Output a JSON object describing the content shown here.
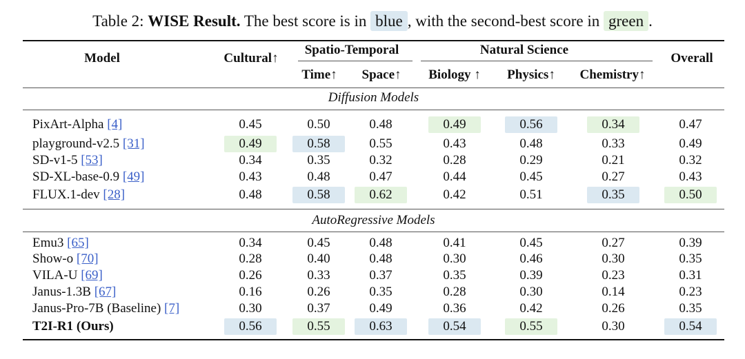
{
  "caption": {
    "prefix": "Table 2: ",
    "title": "WISE Result.",
    "text1": " The best score is in ",
    "blue_word": "blue",
    "text2": ", with the second-best score in ",
    "green_word": "green",
    "text3": "."
  },
  "header": {
    "model": "Model",
    "cultural": "Cultural↑",
    "spatio_temporal": "Spatio-Temporal",
    "time": "Time↑",
    "space": "Space↑",
    "natural_science": "Natural Science",
    "biology": "Biology ↑",
    "physics": "Physics↑",
    "chemistry": "Chemistry↑",
    "overall": "Overall"
  },
  "sections": {
    "diffusion": "Diffusion Models",
    "autoregressive": "AutoRegressive Models"
  },
  "rows": [
    {
      "name": "PixArt-Alpha ",
      "ref": "[4]",
      "v": [
        "0.45",
        "0.50",
        "0.48",
        "0.49",
        "0.56",
        "0.34",
        "0.47"
      ],
      "hl": [
        "",
        "",
        "",
        "second",
        "best",
        "second",
        ""
      ]
    },
    {
      "name": "playground-v2.5 ",
      "ref": "[31]",
      "v": [
        "0.49",
        "0.58",
        "0.55",
        "0.43",
        "0.48",
        "0.33",
        "0.49"
      ],
      "hl": [
        "second",
        "best",
        "",
        "",
        "",
        "",
        ""
      ]
    },
    {
      "name": "SD-v1-5 ",
      "ref": "[53]",
      "v": [
        "0.34",
        "0.35",
        "0.32",
        "0.28",
        "0.29",
        "0.21",
        "0.32"
      ],
      "hl": [
        "",
        "",
        "",
        "",
        "",
        "",
        ""
      ]
    },
    {
      "name": "SD-XL-base-0.9 ",
      "ref": "[49]",
      "v": [
        "0.43",
        "0.48",
        "0.47",
        "0.44",
        "0.45",
        "0.27",
        "0.43"
      ],
      "hl": [
        "",
        "",
        "",
        "",
        "",
        "",
        ""
      ]
    },
    {
      "name": "FLUX.1-dev ",
      "ref": "[28]",
      "v": [
        "0.48",
        "0.58",
        "0.62",
        "0.42",
        "0.51",
        "0.35",
        "0.50"
      ],
      "hl": [
        "",
        "best",
        "second",
        "",
        "",
        "best",
        "second"
      ]
    },
    {
      "name": "Emu3 ",
      "ref": "[65]",
      "v": [
        "0.34",
        "0.45",
        "0.48",
        "0.41",
        "0.45",
        "0.27",
        "0.39"
      ],
      "hl": [
        "",
        "",
        "",
        "",
        "",
        "",
        ""
      ]
    },
    {
      "name": "Show-o ",
      "ref": "[70]",
      "v": [
        "0.28",
        "0.40",
        "0.48",
        "0.30",
        "0.46",
        "0.30",
        "0.35"
      ],
      "hl": [
        "",
        "",
        "",
        "",
        "",
        "",
        ""
      ]
    },
    {
      "name": "VILA-U ",
      "ref": "[69]",
      "v": [
        "0.26",
        "0.33",
        "0.37",
        "0.35",
        "0.39",
        "0.23",
        "0.31"
      ],
      "hl": [
        "",
        "",
        "",
        "",
        "",
        "",
        ""
      ]
    },
    {
      "name": "Janus-1.3B ",
      "ref": "[67]",
      "v": [
        "0.16",
        "0.26",
        "0.35",
        "0.28",
        "0.30",
        "0.14",
        "0.23"
      ],
      "hl": [
        "",
        "",
        "",
        "",
        "",
        "",
        ""
      ]
    },
    {
      "name": "Janus-Pro-7B (Baseline) ",
      "ref": "[7]",
      "v": [
        "0.30",
        "0.37",
        "0.49",
        "0.36",
        "0.42",
        "0.26",
        "0.35"
      ],
      "hl": [
        "",
        "",
        "",
        "",
        "",
        "",
        ""
      ]
    },
    {
      "name": "T2I-R1 (Ours)",
      "ref": "",
      "bold": true,
      "v": [
        "0.56",
        "0.55",
        "0.63",
        "0.54",
        "0.55",
        "0.30",
        "0.54"
      ],
      "hl": [
        "best",
        "second",
        "best",
        "best",
        "second",
        "",
        "best"
      ]
    }
  ]
}
